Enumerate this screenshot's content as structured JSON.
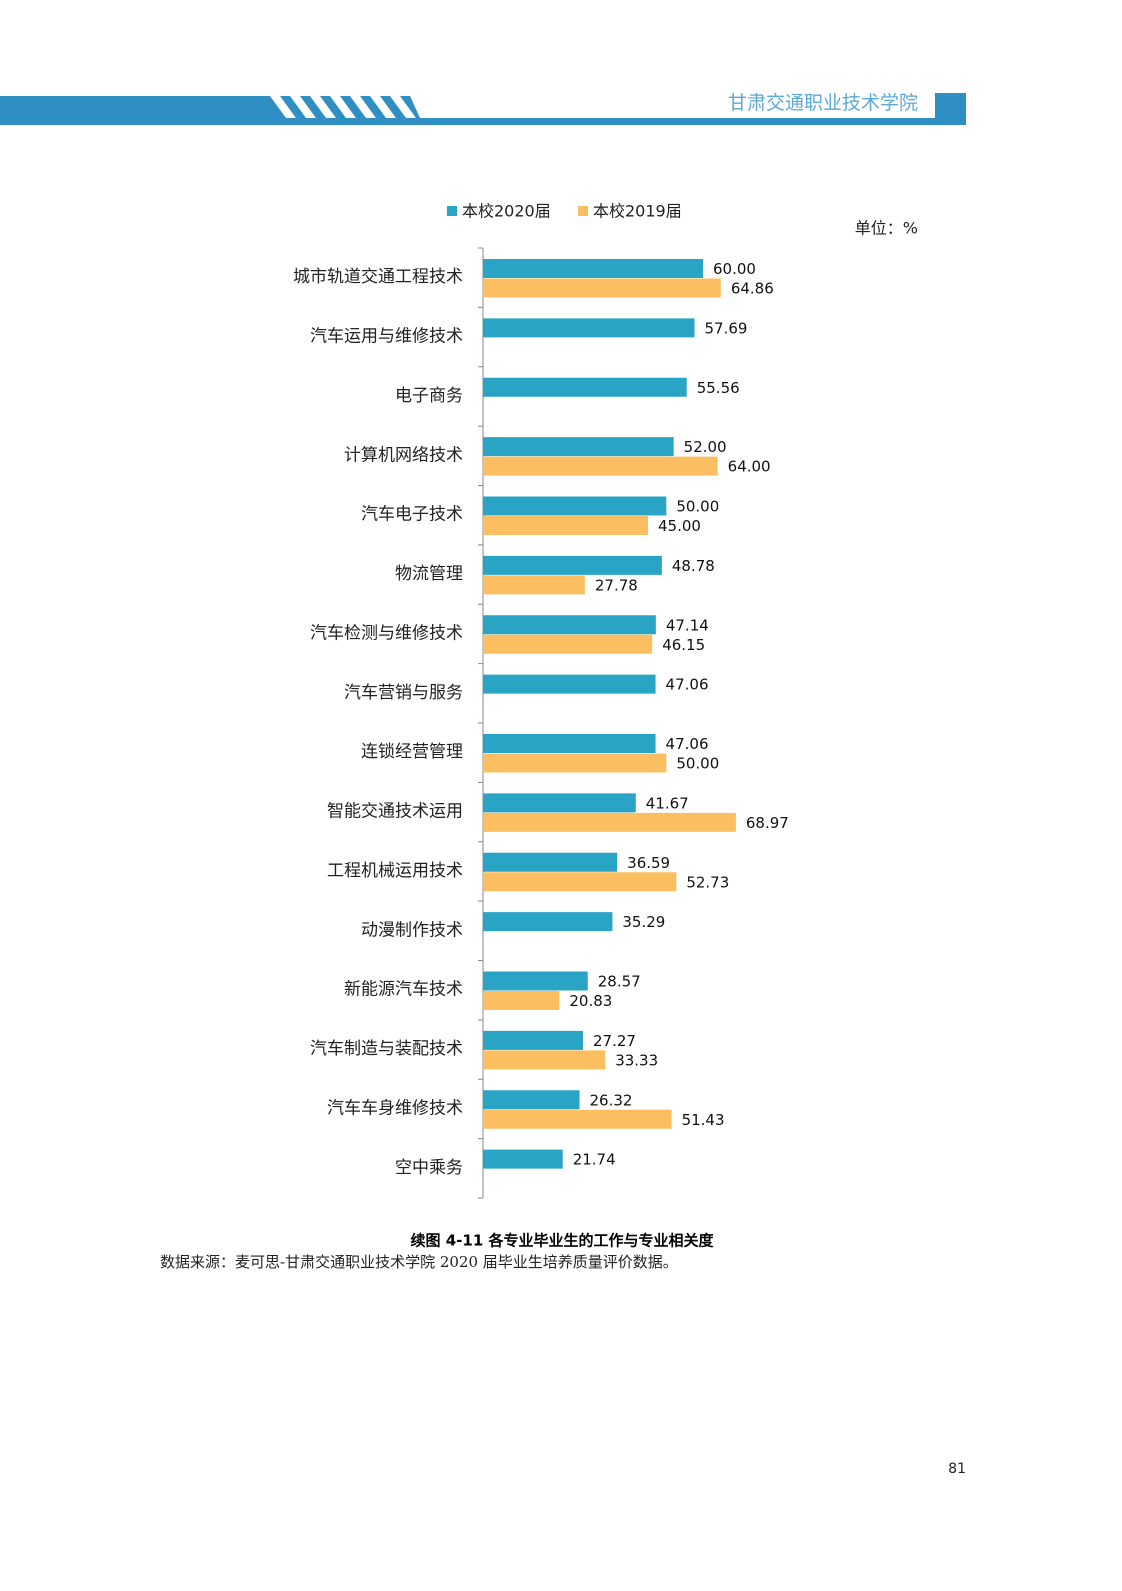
{
  "header": {
    "title": "甘肃交通职业技术学院"
  },
  "chart_data": {
    "type": "bar",
    "orientation": "horizontal",
    "unit_label": "单位：%",
    "categories": [
      "城市轨道交通工程技术",
      "汽车运用与维修技术",
      "电子商务",
      "计算机网络技术",
      "汽车电子技术",
      "物流管理",
      "汽车检测与维修技术",
      "汽车营销与服务",
      "连锁经营管理",
      "智能交通技术运用",
      "工程机械运用技术",
      "动漫制作技术",
      "新能源汽车技术",
      "汽车制造与装配技术",
      "汽车车身维修技术",
      "空中乘务"
    ],
    "series": [
      {
        "name": "本校2020届",
        "color": "#2aa4c4",
        "values": [
          60,
          57.69,
          55.56,
          52,
          50,
          48.78,
          47.14,
          47.06,
          47.06,
          41.67,
          36.59,
          35.29,
          28.57,
          27.27,
          26.32,
          21.74
        ],
        "value_labels": [
          "60.00",
          "57.69",
          "55.56",
          "52.00",
          "50.00",
          "48.78",
          "47.14",
          "47.06",
          "47.06",
          "41.67",
          "36.59",
          "35.29",
          "28.57",
          "27.27",
          "26.32",
          "21.74"
        ]
      },
      {
        "name": "本校2019届",
        "color": "#fbbf62",
        "values": [
          64.86,
          null,
          null,
          64,
          45,
          27.78,
          46.15,
          null,
          50,
          68.97,
          52.73,
          null,
          20.83,
          33.33,
          51.43,
          null
        ],
        "value_labels": [
          "64.86",
          null,
          null,
          "64.00",
          "45.00",
          "27.78",
          "46.15",
          null,
          "50.00",
          "68.97",
          "52.73",
          null,
          "20.83",
          "33.33",
          "51.43",
          null
        ]
      }
    ],
    "xlim": [
      0,
      80
    ]
  },
  "caption": "续图 4-11 各专业毕业生的工作与专业相关度",
  "source": "数据来源：麦可思-甘肃交通职业技术学院 2020 届毕业生培养质量评价数据。",
  "page_number": "81"
}
